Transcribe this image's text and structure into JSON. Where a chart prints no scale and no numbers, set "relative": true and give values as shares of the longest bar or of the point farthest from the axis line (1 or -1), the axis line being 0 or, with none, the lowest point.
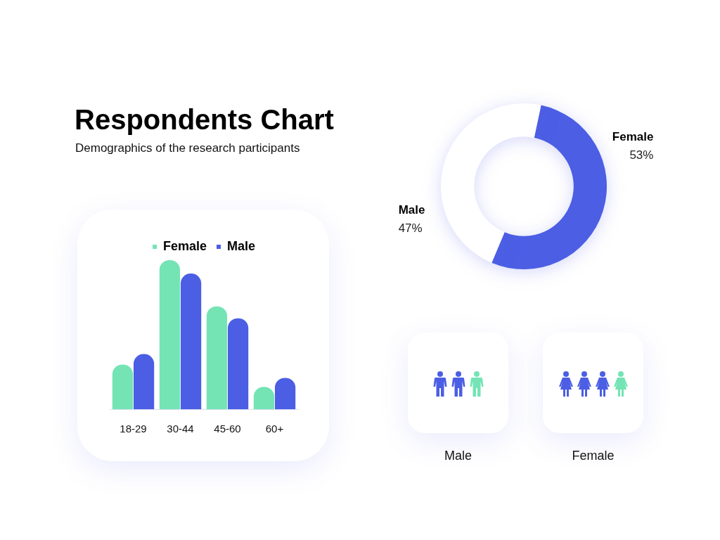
{
  "chart_data": [
    {
      "type": "bar",
      "title": "Respondents Chart",
      "subtitle": "Demographics of the research participants",
      "categories": [
        "18-29",
        "30-44",
        "45-60",
        "60+"
      ],
      "relative": true,
      "legend": "top",
      "series": [
        {
          "name": "Female",
          "color": "#74e4b4",
          "values": [
            0.3,
            1,
            0.69,
            0.15
          ]
        },
        {
          "name": "Male",
          "color": "#4b5ee4",
          "values": [
            0.37,
            0.91,
            0.61,
            0.21
          ]
        }
      ]
    },
    {
      "type": "donut",
      "categories": [
        "Female",
        "Male"
      ],
      "values": [
        53,
        47
      ],
      "colors": [
        "#4b5ee4",
        "#ffffff"
      ],
      "value_labels": [
        "53%",
        "47%"
      ]
    },
    {
      "type": "other",
      "annotations": [
        "Male",
        "Female"
      ]
    }
  ]
}
